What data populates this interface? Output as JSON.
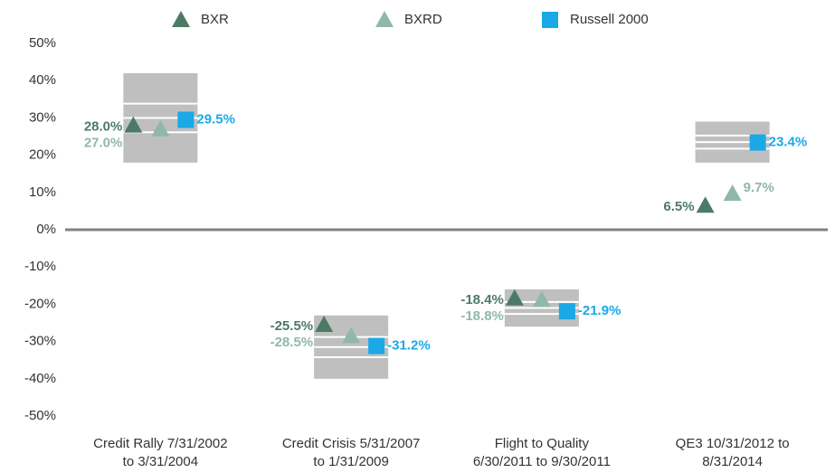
{
  "chart_data": {
    "type": "scatter",
    "categories": [
      [
        "Credit Rally 7/31/2002",
        "to 3/31/2004"
      ],
      [
        "Credit Crisis 5/31/2007",
        "to 1/31/2009"
      ],
      [
        "Flight to Quality",
        "6/30/2011 to 9/30/2011"
      ],
      [
        "QE3 10/31/2012 to",
        "8/31/2014"
      ]
    ],
    "series": [
      {
        "name": "BXR",
        "color": "#4d7a66",
        "marker": "triangle",
        "values": [
          28.0,
          -25.5,
          -18.4,
          6.5
        ],
        "value_labels": [
          "28.0%",
          "-25.5%",
          "-18.4%",
          "6.5%"
        ]
      },
      {
        "name": "BXRD",
        "color": "#8fb9a6",
        "marker": "triangle",
        "values": [
          27.0,
          -28.5,
          -18.8,
          9.7
        ],
        "value_labels": [
          "27.0%",
          "-28.5%",
          "-18.8%",
          "9.7%"
        ]
      },
      {
        "name": "Russell 2000",
        "color": "#1aa9e6",
        "marker": "square",
        "values": [
          29.5,
          -31.2,
          -21.9,
          23.4
        ],
        "value_labels": [
          "29.5%",
          "-31.2%",
          "-21.9%",
          "23.4%"
        ]
      }
    ],
    "ranges": [
      [
        18,
        42
      ],
      [
        -23,
        -40
      ],
      [
        -16,
        -26
      ],
      [
        18,
        29
      ]
    ],
    "range_color": "#bfbfbf",
    "ylim": [
      -50,
      50
    ],
    "yticks": [
      {
        "value": -50,
        "label": "-50%"
      },
      {
        "value": -40,
        "label": "-40%"
      },
      {
        "value": -30,
        "label": "-30%"
      },
      {
        "value": -20,
        "label": "-20%"
      },
      {
        "value": -10,
        "label": "-10%"
      },
      {
        "value": 0,
        "label": "0%"
      },
      {
        "value": 10,
        "label": "10%"
      },
      {
        "value": 20,
        "label": "20%"
      },
      {
        "value": 30,
        "label": "30%"
      },
      {
        "value": 40,
        "label": "40%"
      },
      {
        "value": 50,
        "label": "50%"
      }
    ],
    "legend": "top"
  }
}
